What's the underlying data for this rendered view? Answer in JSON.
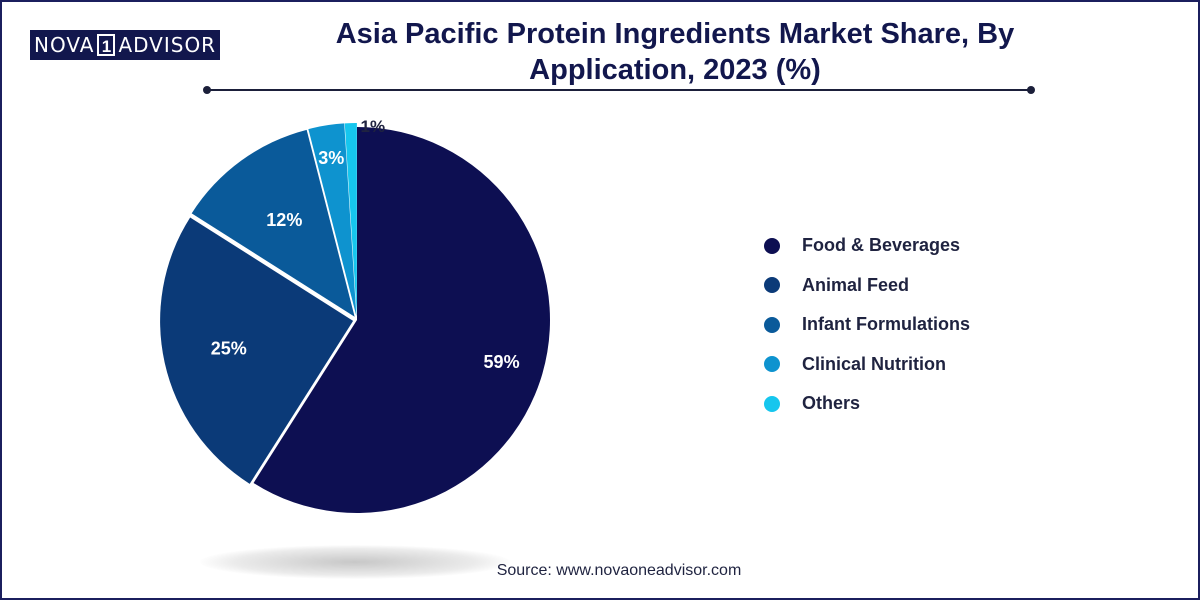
{
  "brand": {
    "logo_left": "NOVA",
    "logo_mark": "1",
    "logo_right": "ADVISOR"
  },
  "chart_data": {
    "type": "pie",
    "title": "Asia Pacific Protein Ingredients Market Share, By Application, 2023 (%)",
    "unit": "%",
    "legend_position": "right",
    "slices": [
      {
        "label": "Food & Beverages",
        "value": 59,
        "value_label": "59%",
        "color": "#0d0f52"
      },
      {
        "label": "Animal Feed",
        "value": 25,
        "value_label": "25%",
        "color": "#0b3a78"
      },
      {
        "label": "Infant Formulations",
        "value": 12,
        "value_label": "12%",
        "color": "#0a5a9a"
      },
      {
        "label": "Clinical Nutrition",
        "value": 3,
        "value_label": "3%",
        "color": "#0e93cf"
      },
      {
        "label": "Others",
        "value": 1,
        "value_label": "1%",
        "color": "#16c6ee"
      }
    ]
  },
  "footer": {
    "source": "Source: www.novaoneadvisor.com"
  }
}
